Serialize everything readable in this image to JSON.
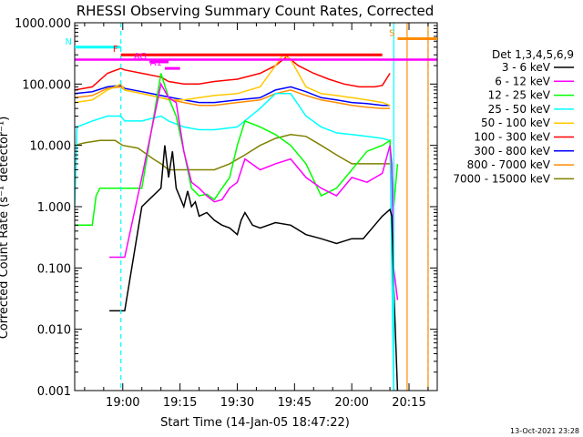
{
  "chart_data": {
    "type": "line",
    "title": "RHESSI Observing Summary Count Rates, Corrected",
    "xlabel": "Start Time (14-Jan-05 18:47:22)",
    "ylabel": "Corrected Count Rate (s⁻¹ detector⁻¹)",
    "yscale": "log",
    "ylim": [
      0.001,
      1000
    ],
    "xlim_minutes_after_start": [
      -12.6,
      82.4
    ],
    "x_tick_labels": [
      "19:00",
      "19:15",
      "19:30",
      "19:45",
      "20:00",
      "20:15"
    ],
    "x_tick_minutes": [
      0,
      15,
      30,
      45,
      60,
      75
    ],
    "y_tick_labels": [
      "1000.000",
      "100.000",
      "10.000",
      "1.000",
      "0.100",
      "0.010",
      "0.001"
    ],
    "y_tick_values": [
      1000,
      100,
      10,
      1,
      0.1,
      0.01,
      0.001
    ],
    "legend_title": "Det 1,3,4,5,6,9",
    "legend_position": "right",
    "timestamp": "13-Oct-2021 23:28",
    "series": [
      {
        "name": "3 - 6 keV",
        "color": "#000000",
        "x": [
          -3.5,
          -0.5,
          0.5,
          5,
          10,
          11,
          12,
          13,
          14,
          16,
          17,
          18,
          19,
          20,
          22,
          24,
          26,
          28,
          30,
          31,
          32,
          34,
          36,
          40,
          44,
          48,
          52,
          56,
          60,
          63,
          66,
          68,
          70,
          70.5,
          71,
          72
        ],
        "y": [
          0.02,
          0.02,
          0.02,
          1.0,
          2.0,
          10,
          3,
          8,
          2,
          1.0,
          1.8,
          1.0,
          1.2,
          0.7,
          0.8,
          0.6,
          0.5,
          0.45,
          0.35,
          0.6,
          0.8,
          0.5,
          0.45,
          0.55,
          0.5,
          0.35,
          0.3,
          0.25,
          0.3,
          0.3,
          0.5,
          0.7,
          0.9,
          0.7,
          0.05,
          0.001
        ]
      },
      {
        "name": "6 - 12 keV",
        "color": "#ff00ff",
        "x": [
          -3.5,
          -0.5,
          0.5,
          5,
          10,
          12,
          14,
          15,
          16,
          18,
          20,
          22,
          24,
          26,
          28,
          30,
          32,
          36,
          40,
          44,
          48,
          52,
          56,
          60,
          64,
          68,
          70,
          70.5,
          71,
          72
        ],
        "y": [
          0.15,
          0.15,
          0.15,
          3,
          100,
          60,
          50,
          20,
          8,
          2.5,
          2.0,
          1.5,
          1.2,
          1.3,
          2.0,
          2.5,
          6,
          4,
          5,
          6,
          3,
          2.0,
          1.5,
          3,
          2.5,
          3.5,
          10,
          5,
          0.1,
          0.03
        ]
      },
      {
        "name": "12 - 25 keV",
        "color": "#00ff00",
        "x": [
          -12.6,
          -8,
          -7,
          -6,
          -3,
          -0.5,
          0.5,
          5,
          10,
          12,
          14,
          16,
          18,
          20,
          22,
          24,
          26,
          28,
          30,
          32,
          36,
          40,
          44,
          48,
          52,
          56,
          60,
          64,
          68,
          70,
          71,
          72
        ],
        "y": [
          0.5,
          0.5,
          1.5,
          2.0,
          2.0,
          2.0,
          2.0,
          2.0,
          150,
          60,
          30,
          8,
          2.0,
          1.5,
          1.6,
          1.3,
          2.0,
          3,
          10,
          25,
          20,
          15,
          10,
          5,
          1.5,
          2.0,
          4,
          8,
          10,
          12,
          1.0,
          5
        ]
      },
      {
        "name": "25 - 50 keV",
        "color": "#00ffff",
        "x": [
          -12.6,
          -12,
          -8,
          -4,
          -0.5,
          0.5,
          5,
          10,
          12,
          16,
          20,
          24,
          30,
          36,
          40,
          44,
          48,
          52,
          56,
          60,
          64,
          68,
          70,
          71,
          72
        ],
        "y": [
          1.0,
          20,
          25,
          30,
          30,
          25,
          25,
          30,
          25,
          20,
          18,
          18,
          20,
          40,
          70,
          70,
          30,
          20,
          16,
          15,
          14,
          13,
          12,
          0.001,
          0.001
        ]
      },
      {
        "name": "50 - 100 keV",
        "color": "#ffc800",
        "x": [
          -12.6,
          -8,
          -4,
          -0.5,
          0.5,
          5,
          10,
          12,
          16,
          20,
          24,
          30,
          36,
          40,
          42,
          44,
          46,
          48,
          52,
          56,
          60,
          64,
          68,
          70
        ],
        "y": [
          50,
          55,
          80,
          100,
          80,
          70,
          60,
          55,
          55,
          60,
          65,
          70,
          90,
          200,
          300,
          250,
          150,
          90,
          70,
          65,
          60,
          55,
          50,
          45
        ]
      },
      {
        "name": "100 - 300 keV",
        "color": "#ff0000",
        "x": [
          -12.6,
          -8,
          -4,
          -0.5,
          0.5,
          5,
          10,
          12,
          16,
          20,
          24,
          30,
          36,
          40,
          43,
          46,
          50,
          54,
          58,
          62,
          66,
          68,
          70
        ],
        "y": [
          80,
          90,
          150,
          180,
          170,
          150,
          130,
          110,
          100,
          100,
          110,
          120,
          150,
          200,
          280,
          200,
          150,
          120,
          100,
          90,
          90,
          95,
          150
        ]
      },
      {
        "name": "300 - 800 keV",
        "color": "#0000ff",
        "x": [
          -12.6,
          -8,
          -4,
          -0.5,
          0.5,
          5,
          10,
          16,
          20,
          24,
          30,
          36,
          40,
          44,
          48,
          52,
          56,
          60,
          64,
          68,
          70
        ],
        "y": [
          70,
          75,
          90,
          95,
          85,
          75,
          65,
          55,
          50,
          50,
          55,
          60,
          80,
          90,
          75,
          60,
          55,
          50,
          48,
          45,
          45
        ]
      },
      {
        "name": "800 - 7000 keV",
        "color": "#ff8c00",
        "x": [
          -12.6,
          -8,
          -4,
          -0.5,
          0.5,
          5,
          10,
          16,
          20,
          24,
          30,
          36,
          40,
          44,
          48,
          52,
          56,
          60,
          64,
          68,
          70
        ],
        "y": [
          60,
          65,
          85,
          90,
          80,
          70,
          60,
          50,
          45,
          45,
          50,
          55,
          70,
          80,
          65,
          55,
          50,
          45,
          42,
          40,
          40
        ]
      },
      {
        "name": "7000 - 15000 keV",
        "color": "#808000",
        "x": [
          -12.6,
          -10,
          -6,
          -2,
          0,
          4,
          8,
          10,
          12,
          16,
          20,
          24,
          28,
          32,
          36,
          40,
          44,
          48,
          52,
          56,
          60,
          64,
          68,
          70
        ],
        "y": [
          10,
          11,
          12,
          12,
          10,
          9,
          6,
          5,
          4,
          4,
          4,
          4,
          5,
          7,
          10,
          13,
          15,
          14,
          10,
          7,
          5,
          5,
          5,
          5
        ]
      }
    ],
    "annotations": [
      {
        "label": "N",
        "color": "#00ffff",
        "x_range": [
          -12.6,
          -0.5
        ],
        "y": 400
      },
      {
        "label": "F",
        "color": "#ff0000",
        "x_range": [
          -0.5,
          68
        ],
        "y": 300
      },
      {
        "label": "AG",
        "color": "#ff00ff",
        "x_range": [
          7,
          12
        ],
        "y": 230
      },
      {
        "label": "A1",
        "color": "#ff00ff",
        "x_range": [
          11,
          15
        ],
        "y": 180
      },
      {
        "label": "S",
        "color": "#ff8c00",
        "x_range": [
          72,
          82.4
        ],
        "y": 550
      }
    ],
    "vlines": [
      {
        "x": -0.5,
        "color": "#00ffff",
        "style": "dashed"
      },
      {
        "x": 71,
        "color": "#00ffff",
        "style": "solid"
      },
      {
        "x": 74.5,
        "color": "#ff8c00",
        "style": "solid"
      },
      {
        "x": 80,
        "color": "#00ffff",
        "style": "dashed"
      },
      {
        "x": 80,
        "color": "#ff8c00",
        "style": "solid"
      }
    ],
    "hlines": [
      {
        "y": 250,
        "color": "#ff00ff",
        "x_range": [
          -12.6,
          82.4
        ]
      }
    ]
  }
}
